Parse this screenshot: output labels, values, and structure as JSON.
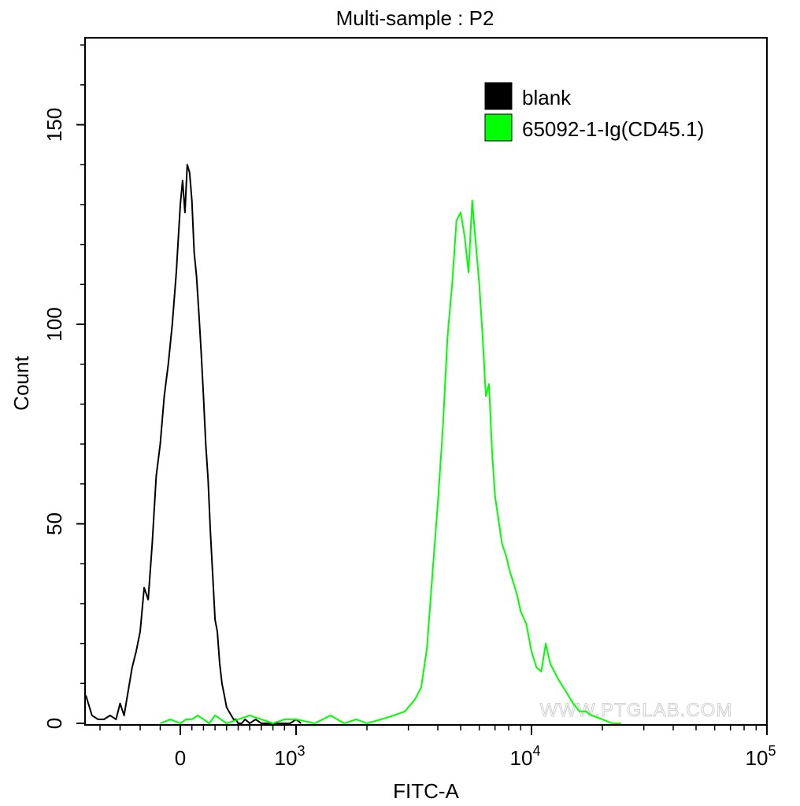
{
  "chart_data": {
    "type": "line",
    "title": "Multi-sample : P2",
    "xlabel": "FITC-A",
    "ylabel": "Count",
    "xscale": "biexponential",
    "ylim": [
      0,
      170
    ],
    "y_ticks": [
      {
        "value": 0,
        "label": "0"
      },
      {
        "value": 50,
        "label": "50"
      },
      {
        "value": 100,
        "label": "100"
      },
      {
        "value": 150,
        "label": "150"
      }
    ],
    "x_ticks": [
      {
        "value": 0,
        "label": "0",
        "sup": ""
      },
      {
        "value": 1000,
        "label": "10",
        "sup": "3"
      },
      {
        "value": 10000,
        "label": "10",
        "sup": "4"
      },
      {
        "value": 100000,
        "label": "10",
        "sup": "5"
      }
    ],
    "legend": {
      "position": "top-right",
      "items": [
        {
          "label": "blank",
          "color": "#000000"
        },
        {
          "label": "65092-1-Ig(CD45.1)",
          "color": "#00ff00"
        }
      ]
    },
    "watermark": "WWW.PTGLAB.COM",
    "series": [
      {
        "name": "blank",
        "color": "#000000",
        "x": [
          -470,
          -440,
          -410,
          -380,
          -350,
          -320,
          -300,
          -280,
          -260,
          -240,
          -220,
          -200,
          -180,
          -160,
          -140,
          -120,
          -100,
          -80,
          -60,
          -40,
          -20,
          0,
          20,
          40,
          60,
          80,
          100,
          120,
          140,
          160,
          180,
          200,
          220,
          240,
          260,
          280,
          300,
          320,
          340,
          360,
          380,
          400,
          420,
          440,
          460,
          480,
          500,
          530,
          560,
          600,
          650,
          700,
          750,
          800,
          850,
          900,
          950,
          1000,
          1050
        ],
        "y": [
          7,
          2,
          1,
          1,
          2,
          1,
          5,
          2,
          8,
          14,
          18,
          23,
          34,
          31,
          45,
          62,
          70,
          82,
          90,
          100,
          113,
          130,
          136,
          128,
          140,
          138,
          131,
          118,
          112,
          103,
          93,
          82,
          70,
          61,
          48,
          37,
          26,
          23,
          15,
          10,
          7,
          4,
          3,
          2,
          1,
          1,
          0,
          0,
          1,
          0,
          1,
          0,
          0,
          0,
          0,
          0,
          0,
          1,
          0
        ]
      },
      {
        "name": "65092-1-Ig(CD45.1)",
        "color": "#00ff00",
        "x": [
          -100,
          -50,
          0,
          50,
          100,
          150,
          200,
          250,
          300,
          350,
          400,
          500,
          600,
          700,
          800,
          900,
          1000,
          1200,
          1400,
          1600,
          1800,
          2000,
          2300,
          2600,
          2900,
          3200,
          3400,
          3600,
          3800,
          4000,
          4200,
          4400,
          4600,
          4800,
          5000,
          5200,
          5400,
          5600,
          5800,
          6000,
          6200,
          6400,
          6600,
          6800,
          7000,
          7200,
          7500,
          7800,
          8100,
          8400,
          8700,
          9000,
          9500,
          10000,
          10500,
          11000,
          11500,
          12000,
          13000,
          14000,
          15000,
          16000,
          17000,
          18000,
          20000,
          22000,
          24000
        ],
        "y": [
          0,
          1,
          0,
          1,
          1,
          2,
          1,
          0,
          2,
          1,
          0,
          1,
          2,
          1,
          0,
          1,
          1,
          0,
          2,
          0,
          1,
          0,
          1,
          2,
          3,
          6,
          9,
          19,
          38,
          55,
          74,
          97,
          110,
          126,
          128,
          122,
          113,
          131,
          120,
          110,
          97,
          82,
          85,
          68,
          57,
          52,
          45,
          42,
          38,
          35,
          32,
          28,
          25,
          18,
          14,
          13,
          20,
          15,
          11,
          8,
          5,
          3,
          3,
          2,
          1,
          0,
          0
        ]
      }
    ]
  }
}
